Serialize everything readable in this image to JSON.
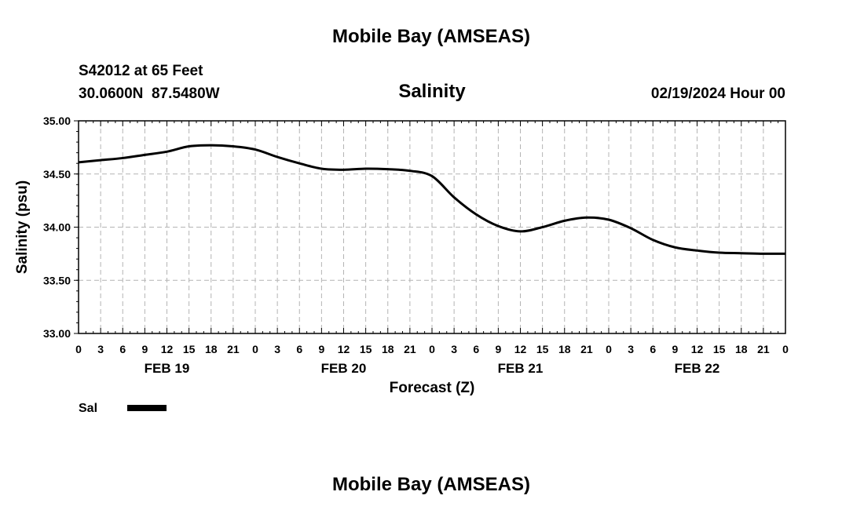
{
  "header": {
    "title": "Mobile Bay (AMSEAS)",
    "station": "S42012 at 65 Feet",
    "coords": "30.0600N  87.5480W",
    "date": "02/19/2024 Hour 00"
  },
  "footer": {
    "title": "Mobile Bay (AMSEAS)"
  },
  "chart_data": {
    "type": "line",
    "title": "Salinity",
    "xlabel": "Forecast (Z)",
    "ylabel": "Salinity (psu)",
    "ylim": [
      33.0,
      35.0
    ],
    "xlim": [
      0,
      96
    ],
    "x_unit": "forecast hour",
    "yticks": [
      "33.00",
      "33.50",
      "34.00",
      "34.50",
      "35.00"
    ],
    "ytick_values": [
      33.0,
      33.5,
      34.0,
      34.5,
      35.0
    ],
    "xtick_hours": [
      0,
      3,
      6,
      9,
      12,
      15,
      18,
      21,
      24,
      27,
      30,
      33,
      36,
      39,
      42,
      45,
      48,
      51,
      54,
      57,
      60,
      63,
      66,
      69,
      72,
      75,
      78,
      81,
      84,
      87,
      90,
      93,
      96
    ],
    "xtick_labels": [
      "0",
      "3",
      "6",
      "9",
      "12",
      "15",
      "18",
      "21",
      "0",
      "3",
      "6",
      "9",
      "12",
      "15",
      "18",
      "21",
      "0",
      "3",
      "6",
      "9",
      "12",
      "15",
      "18",
      "21",
      "0",
      "3",
      "6",
      "9",
      "12",
      "15",
      "18",
      "21",
      "0"
    ],
    "day_labels": [
      {
        "label": "FEB 19",
        "hour": 12
      },
      {
        "label": "FEB 20",
        "hour": 36
      },
      {
        "label": "FEB 21",
        "hour": 60
      },
      {
        "label": "FEB 22",
        "hour": 84
      }
    ],
    "grid": true,
    "legend": "bottom-left",
    "series": [
      {
        "name": "Sal",
        "color": "#000000",
        "x": [
          0,
          3,
          6,
          9,
          12,
          15,
          18,
          21,
          24,
          27,
          30,
          33,
          36,
          39,
          42,
          45,
          48,
          51,
          54,
          57,
          60,
          63,
          66,
          69,
          72,
          75,
          78,
          81,
          84,
          87,
          90,
          93,
          96
        ],
        "values": [
          34.61,
          34.63,
          34.65,
          34.68,
          34.71,
          34.76,
          34.77,
          34.76,
          34.73,
          34.66,
          34.6,
          34.55,
          34.54,
          34.55,
          34.545,
          34.53,
          34.48,
          34.28,
          34.12,
          34.01,
          33.96,
          34.0,
          34.06,
          34.09,
          34.07,
          33.99,
          33.88,
          33.81,
          33.78,
          33.76,
          33.755,
          33.75,
          33.75
        ]
      }
    ]
  }
}
